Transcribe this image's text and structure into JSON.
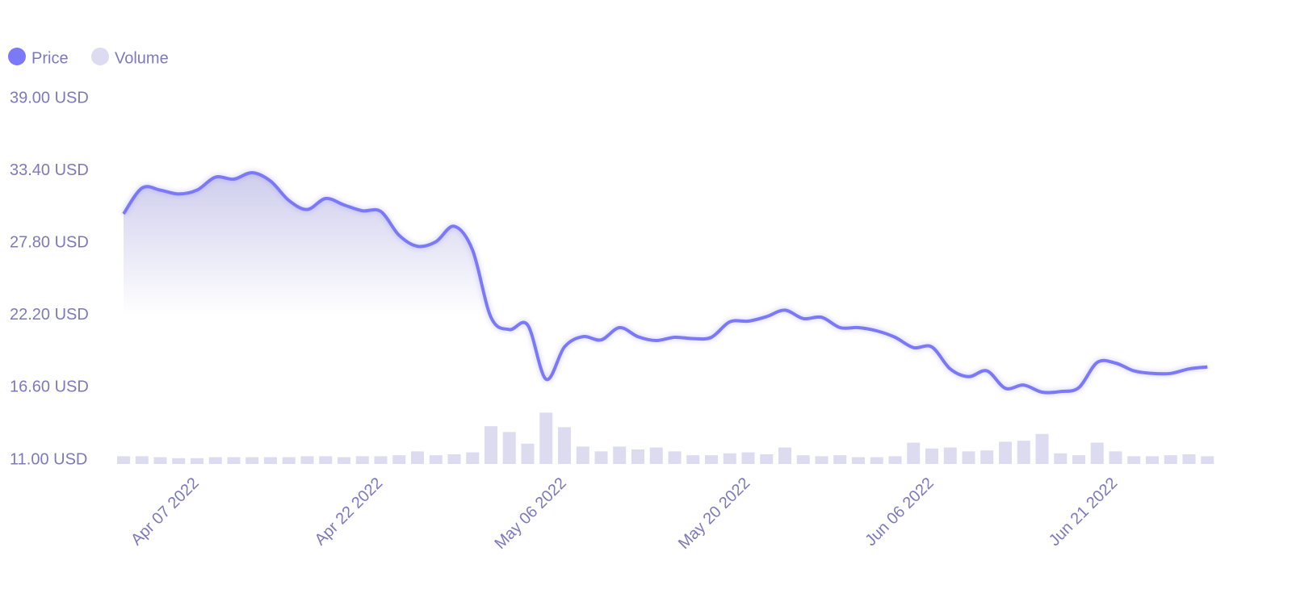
{
  "chart_data": {
    "type": "line",
    "categories": [
      null,
      null,
      "Apr 07 2022",
      null,
      null,
      null,
      null,
      null,
      null,
      null,
      null,
      null,
      "Apr 22 2022",
      null,
      null,
      null,
      null,
      null,
      null,
      null,
      null,
      null,
      "May 06 2022",
      null,
      null,
      null,
      null,
      null,
      null,
      null,
      null,
      null,
      "May 20 2022",
      null,
      null,
      null,
      null,
      null,
      null,
      null,
      null,
      null,
      "Jun 06 2022",
      null,
      null,
      null,
      null,
      null,
      null,
      null,
      null,
      null,
      "Jun 21 2022",
      null,
      null,
      null,
      null,
      null,
      null,
      null
    ],
    "series": [
      {
        "name": "Price",
        "color": "#7b79f7",
        "values": [
          30.06,
          32.06,
          31.9,
          31.6,
          31.9,
          32.9,
          32.75,
          33.25,
          32.6,
          31.1,
          30.4,
          31.25,
          30.75,
          30.3,
          30.25,
          28.4,
          27.55,
          27.9,
          29.1,
          27.25,
          22.05,
          21.1,
          21.45,
          17.25,
          19.75,
          20.55,
          20.3,
          21.25,
          20.55,
          20.25,
          20.5,
          20.4,
          20.5,
          21.7,
          21.75,
          22.1,
          22.6,
          21.95,
          22.05,
          21.25,
          21.25,
          21.0,
          20.5,
          19.7,
          19.75,
          18.05,
          17.45,
          17.9,
          16.55,
          16.8,
          16.25,
          16.3,
          16.6,
          18.55,
          18.5,
          17.9,
          17.7,
          17.7,
          18.05,
          18.2
        ]
      },
      {
        "name": "Volume",
        "color": "#dcdbef",
        "axis": "y2",
        "values": [
          8,
          8,
          7,
          6,
          6,
          7,
          7,
          7,
          7,
          7,
          8,
          8,
          7,
          8,
          8,
          9,
          13,
          9,
          10,
          12,
          39,
          33,
          21,
          53,
          38,
          18,
          13,
          18,
          15,
          17,
          13,
          9,
          9,
          11,
          12,
          10,
          17,
          9,
          8,
          9,
          7,
          7,
          8,
          22,
          16,
          17,
          13,
          14,
          23,
          24,
          31,
          11,
          9,
          22,
          13,
          8,
          8,
          9,
          10,
          8
        ]
      }
    ],
    "ylim": [
      11,
      39
    ],
    "yticks": [
      {
        "value": 11,
        "label": "11.00 USD"
      },
      {
        "value": 16.6,
        "label": "16.60 USD"
      },
      {
        "value": 22.2,
        "label": "22.20 USD"
      },
      {
        "value": 27.8,
        "label": "27.80 USD"
      },
      {
        "value": 33.4,
        "label": "33.40 USD"
      },
      {
        "value": 39,
        "label": "39.00 USD"
      }
    ],
    "y2lim": [
      0,
      100
    ],
    "legend": "top-left"
  }
}
